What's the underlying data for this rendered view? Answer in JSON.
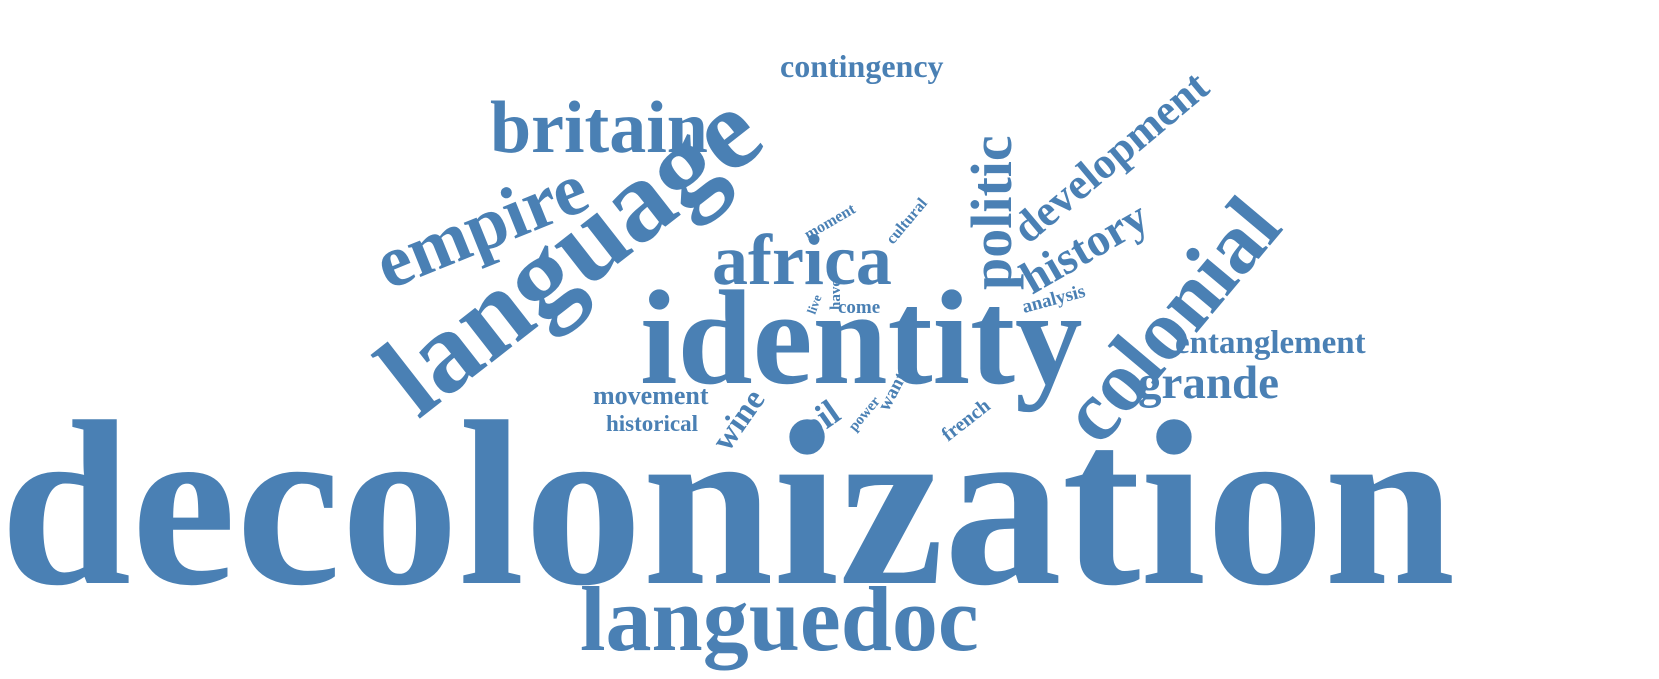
{
  "color": "#4a80b4",
  "words": [
    "decolonization",
    "languedoc",
    "identity",
    "language",
    "colonial",
    "africa",
    "politic",
    "britain",
    "empire",
    "history",
    "development",
    "grande",
    "entanglement",
    "contingency",
    "movement",
    "historical",
    "wine",
    "soil",
    "french",
    "analysis",
    "come",
    "moment",
    "cultural",
    "have",
    "live",
    "power",
    "want"
  ]
}
